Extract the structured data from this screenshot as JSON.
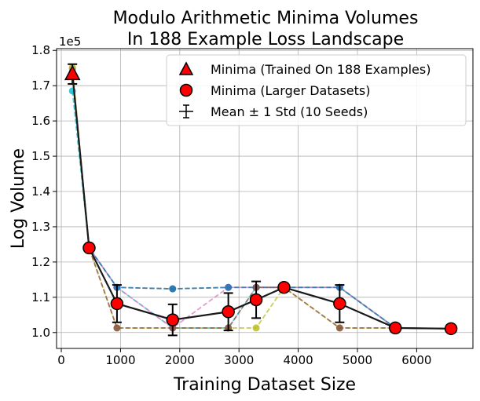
{
  "chart_data": {
    "type": "line",
    "title_lines": [
      "Modulo Arithmetic Minima Volumes",
      "In 188 Example Loss Landscape"
    ],
    "xlabel": "Training Dataset Size",
    "ylabel": "Log Volume",
    "y_offset_label": "1e5",
    "xlim": [
      -80,
      6950
    ],
    "ylim": [
      0.955,
      1.805
    ],
    "x_ticks": [
      0,
      1000,
      2000,
      3000,
      4000,
      5000,
      6000
    ],
    "x_tick_labels": [
      "0",
      "1000",
      "2000",
      "3000",
      "4000",
      "5000",
      "6000"
    ],
    "y_ticks": [
      1.0,
      1.1,
      1.2,
      1.3,
      1.4,
      1.5,
      1.6,
      1.7,
      1.8
    ],
    "y_tick_labels": [
      "1.0",
      "1.1",
      "1.2",
      "1.3",
      "1.4",
      "1.5",
      "1.6",
      "1.7",
      "1.8"
    ],
    "grid": true,
    "legend_position": "top-right",
    "legend": [
      {
        "label": "Minima (Trained On 188 Examples)",
        "marker": "triangle"
      },
      {
        "label": "Minima (Larger Datasets)",
        "marker": "circle"
      },
      {
        "label": "Mean ± 1 Std (10 Seeds)",
        "marker": "errorbar"
      }
    ],
    "seed_series": [
      {
        "color": "#17becf",
        "x": [
          188,
          470,
          940,
          1880,
          2820,
          3290,
          3760,
          4700,
          5640,
          6580
        ],
        "y": [
          1.685,
          1.24,
          1.128,
          1.013,
          1.013,
          1.128,
          1.128,
          1.128,
          1.013,
          1.011
        ]
      },
      {
        "color": "#7f7f7f",
        "x": [
          188,
          470,
          940,
          1880,
          2820,
          3290,
          3760,
          4700,
          5640,
          6580
        ],
        "y": [
          1.748,
          1.24,
          1.128,
          1.124,
          1.128,
          1.128,
          1.128,
          1.128,
          1.013,
          1.011
        ]
      },
      {
        "color": "#bcbd22",
        "x": [
          188,
          470,
          940,
          1880,
          2820,
          3290,
          3760,
          4700,
          5640,
          6580
        ],
        "y": [
          1.752,
          1.24,
          1.013,
          1.013,
          1.013,
          1.013,
          1.128,
          1.013,
          1.013,
          1.011
        ]
      },
      {
        "color": "#e377c2",
        "x": [
          188,
          470,
          940,
          1880,
          2820,
          3290,
          3760,
          4700,
          5640,
          6580
        ],
        "y": [
          1.74,
          1.24,
          1.128,
          1.013,
          1.128,
          1.128,
          1.128,
          1.128,
          1.013,
          1.011
        ]
      },
      {
        "color": "#1f77b4",
        "x": [
          188,
          470,
          940,
          1880,
          2820,
          3290,
          3760,
          4700,
          5640,
          6580
        ],
        "y": [
          1.73,
          1.24,
          1.128,
          1.124,
          1.128,
          1.128,
          1.128,
          1.128,
          1.013,
          1.011
        ]
      },
      {
        "color": "#8c564b",
        "x": [
          188,
          470,
          940,
          1880,
          2820,
          3290,
          3760,
          4700,
          5640,
          6580
        ],
        "y": [
          1.735,
          1.24,
          1.013,
          1.013,
          1.013,
          1.128,
          1.128,
          1.013,
          1.013,
          1.011
        ]
      }
    ],
    "mean": {
      "x": [
        188,
        470,
        940,
        1880,
        2820,
        3290,
        3760,
        4700,
        5640,
        6580
      ],
      "y": [
        1.733,
        1.24,
        1.082,
        1.036,
        1.059,
        1.093,
        1.128,
        1.082,
        1.013,
        1.011
      ],
      "std": [
        0.028,
        0.0,
        0.053,
        0.044,
        0.053,
        0.052,
        0.0,
        0.053,
        0.0,
        0.0
      ]
    },
    "trained_minimum": {
      "x": 188,
      "y": 1.733
    }
  }
}
